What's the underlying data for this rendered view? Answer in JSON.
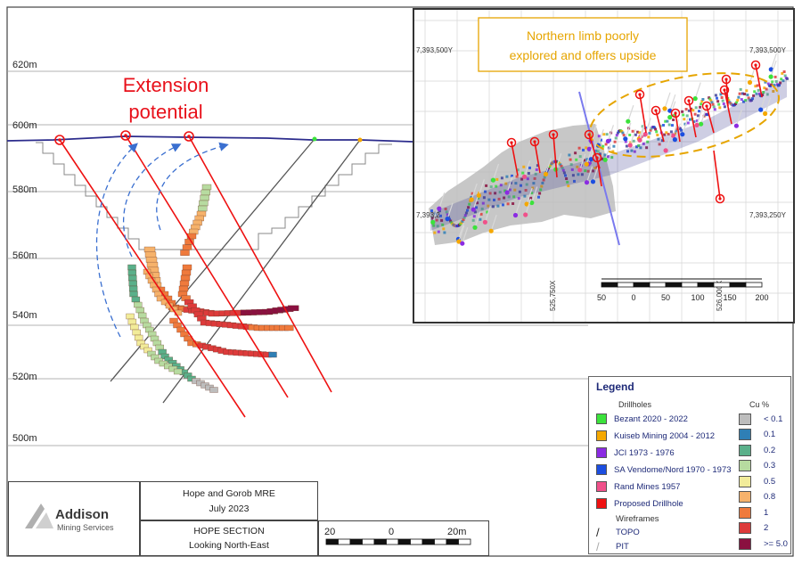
{
  "section": {
    "elevation_labels": [
      "620m",
      "600m",
      "580m",
      "560m",
      "540m",
      "520m",
      "500m"
    ],
    "annotation": {
      "line1": "Extension",
      "line2": "potential",
      "color": "#e8101a"
    }
  },
  "inset": {
    "coord_top_left": "7,393,500Y",
    "coord_top_right": "7,393,500Y",
    "coord_mid_left": "7,393,2",
    "coord_mid_right": "7,393,250Y",
    "easting_1": "525,750X",
    "easting_2": "526,000X",
    "callout_line1": "Northern limb poorly",
    "callout_line2": "explored and offers upside",
    "callout_color": "#e6a500",
    "scale_labels": [
      "50",
      "0",
      "50",
      "100",
      "150",
      "200"
    ]
  },
  "legend": {
    "title": "Legend",
    "drillholes_heading": "Drillholes",
    "cu_heading": "Cu %",
    "drillholes": [
      {
        "label": "Bezant 2020 - 2022",
        "color": "#3be23b"
      },
      {
        "label": "Kuiseb Mining 2004 - 2012",
        "color": "#f5a800"
      },
      {
        "label": "JCI 1973 - 1976",
        "color": "#8b2be2"
      },
      {
        "label": "SA Vendome/Nord 1970 - 1973",
        "color": "#1c4ee0"
      },
      {
        "label": "Rand Mines 1957",
        "color": "#f0508a"
      },
      {
        "label": "Proposed Drillhole",
        "color": "#ee1111"
      }
    ],
    "wireframes_heading": "Wireframes",
    "wireframes": [
      {
        "label": "TOPO",
        "symbol": "/"
      },
      {
        "label": "PIT",
        "symbol": "/"
      }
    ],
    "cu_grades": [
      {
        "label": "< 0.1",
        "color": "#bdbdbd"
      },
      {
        "label": "0.1",
        "color": "#2f7fb5"
      },
      {
        "label": "0.2",
        "color": "#5ab08a"
      },
      {
        "label": "0.3",
        "color": "#b7dba0"
      },
      {
        "label": "0.5",
        "color": "#f2ec9a"
      },
      {
        "label": "0.8",
        "color": "#f6b26b"
      },
      {
        "label": "1",
        "color": "#ef7a3c"
      },
      {
        "label": "2",
        "color": "#dd3b3b"
      },
      {
        "label": ">= 5.0",
        "color": "#8a1040"
      }
    ]
  },
  "titleblock": {
    "company_line1": "Addison",
    "company_line2": "Mining Services",
    "project": "Hope and Gorob MRE",
    "date": "July 2023",
    "section": "HOPE SECTION",
    "direction": "Looking North-East",
    "scale_labels": [
      "20",
      "0",
      "20m"
    ]
  }
}
